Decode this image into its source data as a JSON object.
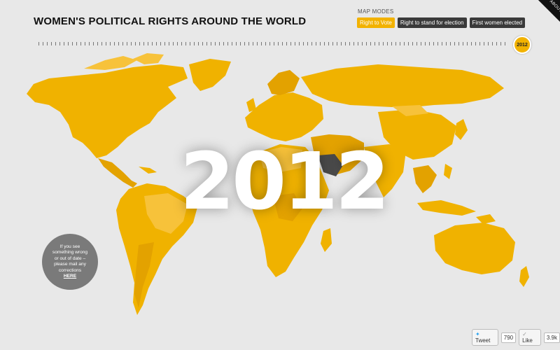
{
  "header": {
    "title": "WOMEN'S POLITICAL RIGHTS AROUND THE WORLD"
  },
  "map_modes": {
    "label": "MAP MODES",
    "options": [
      "Right to Vote",
      "Right to stand for election",
      "First women elected"
    ],
    "selected": "Right to Vote"
  },
  "about": {
    "label": "ABOUT"
  },
  "timeline": {
    "current_year": "2012"
  },
  "overlay_year": "2012",
  "report": {
    "lines": [
      "If you see",
      "something wrong",
      "or out of date –",
      "please mail any",
      "corrections"
    ],
    "link": "HERE"
  },
  "social": {
    "tweet_label": "Tweet",
    "tweet_count": "790",
    "like_label": "Like",
    "like_count": "3.9k"
  },
  "colors": {
    "accent": "#f2b200",
    "country_primary": "#f0b200",
    "country_alt": "#e3a200",
    "country_light": "#f7c23a",
    "no_right": "#4a4a4a",
    "background": "#e8e8e8"
  }
}
